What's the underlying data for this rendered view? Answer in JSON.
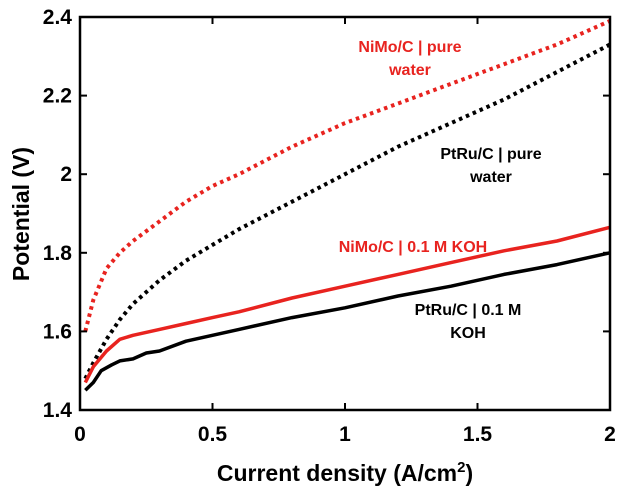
{
  "chart_data": {
    "type": "line",
    "xlabel": "Current density (A/cm",
    "xlabel_sup": "2",
    "xlabel_end": ")",
    "ylabel": "Potential (V)",
    "xlim": [
      0,
      2
    ],
    "ylim": [
      1.4,
      2.4
    ],
    "xticks": [
      "0",
      "0.5",
      "1",
      "1.5",
      "2"
    ],
    "yticks": [
      "1.4",
      "1.6",
      "1.8",
      "2",
      "2.2",
      "2.4"
    ],
    "grid": false,
    "legend": "none",
    "series": [
      {
        "name": "NiMo/C | pure water",
        "label_lines": [
          "NiMo/C | pure",
          "water"
        ],
        "color": "#e8231f",
        "style": "dotted",
        "x": [
          0.02,
          0.05,
          0.1,
          0.15,
          0.2,
          0.3,
          0.4,
          0.5,
          0.6,
          0.8,
          1.0,
          1.2,
          1.4,
          1.6,
          1.8,
          2.0
        ],
        "y": [
          1.6,
          1.68,
          1.76,
          1.8,
          1.83,
          1.88,
          1.93,
          1.97,
          2.0,
          2.07,
          2.13,
          2.18,
          2.23,
          2.28,
          2.33,
          2.39
        ]
      },
      {
        "name": "PtRu/C | pure water",
        "label_lines": [
          "PtRu/C | pure",
          "water"
        ],
        "color": "#000000",
        "style": "dotted",
        "x": [
          0.02,
          0.05,
          0.1,
          0.15,
          0.2,
          0.3,
          0.4,
          0.5,
          0.6,
          0.8,
          1.0,
          1.2,
          1.4,
          1.6,
          1.8,
          2.0
        ],
        "y": [
          1.48,
          1.52,
          1.58,
          1.63,
          1.67,
          1.73,
          1.78,
          1.82,
          1.86,
          1.93,
          2.0,
          2.07,
          2.13,
          2.19,
          2.26,
          2.33
        ]
      },
      {
        "name": "NiMo/C | 0.1 M KOH",
        "label_lines": [
          "NiMo/C | 0.1 M KOH"
        ],
        "color": "#e8231f",
        "style": "solid",
        "x": [
          0.02,
          0.05,
          0.1,
          0.15,
          0.2,
          0.3,
          0.4,
          0.5,
          0.6,
          0.8,
          1.0,
          1.2,
          1.4,
          1.6,
          1.8,
          2.0
        ],
        "y": [
          1.47,
          1.51,
          1.55,
          1.58,
          1.59,
          1.605,
          1.62,
          1.635,
          1.65,
          1.685,
          1.715,
          1.745,
          1.775,
          1.805,
          1.83,
          1.865
        ]
      },
      {
        "name": "PtRu/C | 0.1 M KOH",
        "label_lines": [
          "PtRu/C | 0.1 M",
          "KOH"
        ],
        "color": "#000000",
        "style": "solid",
        "x": [
          0.02,
          0.05,
          0.08,
          0.12,
          0.15,
          0.2,
          0.25,
          0.3,
          0.4,
          0.5,
          0.6,
          0.8,
          1.0,
          1.2,
          1.4,
          1.6,
          1.8,
          2.0
        ],
        "y": [
          1.45,
          1.47,
          1.5,
          1.515,
          1.525,
          1.53,
          1.545,
          1.55,
          1.575,
          1.59,
          1.605,
          1.635,
          1.66,
          1.69,
          1.715,
          1.745,
          1.77,
          1.8
        ]
      }
    ]
  }
}
